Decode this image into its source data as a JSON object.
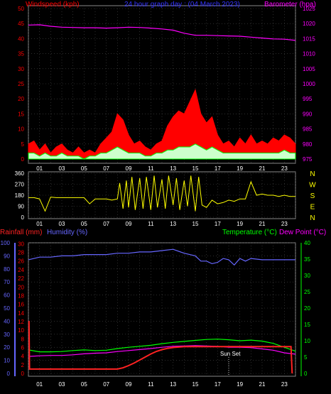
{
  "colors": {
    "background": "#000000",
    "grid": "#4a4a4a",
    "red": "#ff0000",
    "blue": "#3333ff",
    "magenta": "#ff00ff",
    "lime": "#00ff00",
    "white": "#ffffff",
    "yellow": "#ffff00",
    "paleGreen": "#ccffcc",
    "humidity": "#6666ff",
    "rain": "#ff2222"
  },
  "chart_data": [
    {
      "type": "line",
      "id": "wind-baro",
      "title": "24 hour graph day : (04 March 2023)",
      "left_axis_label": "Windspeed (kph)",
      "right_axis_label": "Barometer (hpa)",
      "x_ticks": [
        "01",
        "03",
        "05",
        "07",
        "09",
        "11",
        "13",
        "15",
        "17",
        "19",
        "21",
        "23"
      ],
      "x_range": [
        0,
        24
      ],
      "left_ticks": [
        0,
        5,
        10,
        15,
        20,
        25,
        30,
        35,
        40,
        45,
        50
      ],
      "left_range": [
        0,
        50
      ],
      "right_ticks": [
        975,
        980,
        985,
        990,
        995,
        1000,
        1005,
        1010,
        1015,
        1020,
        1025
      ],
      "right_range": [
        975,
        1025
      ],
      "series": [
        {
          "key": "barometer",
          "axis": "right",
          "x": [
            0,
            1,
            2,
            3,
            4,
            5,
            6,
            7,
            8,
            9,
            10,
            11,
            12,
            13,
            14,
            15,
            16,
            17,
            18,
            19,
            20,
            21,
            22,
            23,
            24
          ],
          "values": [
            1019.5,
            1019.6,
            1019.1,
            1018.8,
            1018.7,
            1018.6,
            1018.6,
            1018.5,
            1018.6,
            1018.8,
            1018.7,
            1018.5,
            1018.2,
            1017.8,
            1016.8,
            1016.1,
            1016.1,
            1016.0,
            1015.9,
            1015.8,
            1015.5,
            1015.2,
            1014.9,
            1014.8,
            1014.4
          ]
        },
        {
          "key": "gust",
          "axis": "left",
          "x": [
            0,
            0.5,
            1,
            1.5,
            2,
            2.5,
            3,
            3.5,
            4,
            4.5,
            5,
            5.5,
            6,
            6.5,
            7,
            7.5,
            8,
            8.5,
            9,
            9.5,
            10,
            10.5,
            11,
            11.5,
            12,
            12.5,
            13,
            13.5,
            14,
            14.5,
            15,
            15.5,
            16,
            16.5,
            17,
            17.5,
            18,
            18.5,
            19,
            19.5,
            20,
            20.5,
            21,
            21.5,
            22,
            22.5,
            23,
            23.5,
            24
          ],
          "values": [
            5,
            6,
            3,
            5,
            2,
            4,
            5,
            3,
            2,
            4,
            2,
            3,
            2,
            5,
            7,
            9,
            15,
            13,
            8,
            5,
            6,
            4,
            3,
            5,
            6,
            11,
            14,
            16,
            15,
            19,
            23,
            15,
            12,
            14,
            8,
            5,
            6,
            4,
            7,
            5,
            8,
            5,
            6,
            5,
            7,
            6,
            8,
            7,
            5
          ]
        },
        {
          "key": "windspeed",
          "axis": "left",
          "x": [
            0,
            0.5,
            1,
            1.5,
            2,
            2.5,
            3,
            3.5,
            4,
            4.5,
            5,
            5.5,
            6,
            6.5,
            7,
            7.5,
            8,
            8.5,
            9,
            9.5,
            10,
            10.5,
            11,
            11.5,
            12,
            12.5,
            13,
            13.5,
            14,
            14.5,
            15,
            15.5,
            16,
            16.5,
            17,
            17.5,
            18,
            18.5,
            19,
            19.5,
            20,
            20.5,
            21,
            21.5,
            22,
            22.5,
            23,
            23.5,
            24
          ],
          "values": [
            2,
            2,
            1,
            2,
            1,
            1,
            2,
            1,
            1,
            1,
            0,
            1,
            1,
            2,
            2,
            3,
            4,
            3,
            2,
            2,
            2,
            1,
            1,
            2,
            2,
            3,
            3,
            4,
            4,
            4,
            5,
            4,
            3,
            4,
            3,
            2,
            2,
            2,
            2,
            2,
            2,
            2,
            2,
            2,
            2,
            2,
            3,
            2,
            2
          ]
        }
      ]
    },
    {
      "type": "line",
      "id": "direction",
      "x_ticks": [
        "01",
        "03",
        "05",
        "07",
        "09",
        "11",
        "13",
        "15",
        "17",
        "19",
        "21",
        "23"
      ],
      "left_ticks": [
        0,
        90,
        180,
        270,
        360
      ],
      "left_range": [
        0,
        360
      ],
      "compass": [
        "N",
        "W",
        "S",
        "E",
        "N"
      ],
      "series": [
        {
          "key": "direction",
          "x": [
            0,
            0.5,
            1,
            1.5,
            2,
            2.5,
            3,
            3.5,
            4,
            4.5,
            5,
            5.5,
            6,
            6.5,
            7,
            7.5,
            8,
            8.2,
            8.5,
            8.8,
            9,
            9.3,
            9.6,
            10,
            10.3,
            10.6,
            11,
            11.3,
            11.6,
            12,
            12.3,
            12.6,
            13,
            13.3,
            13.6,
            14,
            14.3,
            14.6,
            15,
            15.3,
            15.6,
            16,
            16.5,
            17,
            17.5,
            18,
            18.5,
            19,
            19.5,
            20,
            20.5,
            21,
            21.5,
            22,
            22.5,
            23,
            23.5,
            24
          ],
          "values": [
            160,
            160,
            150,
            50,
            165,
            160,
            160,
            160,
            160,
            160,
            160,
            110,
            150,
            150,
            150,
            140,
            150,
            280,
            70,
            300,
            80,
            330,
            60,
            320,
            70,
            330,
            60,
            340,
            80,
            310,
            70,
            340,
            100,
            320,
            60,
            300,
            90,
            340,
            50,
            330,
            100,
            80,
            140,
            110,
            120,
            140,
            130,
            150,
            150,
            290,
            180,
            190,
            180,
            180,
            170,
            180,
            170,
            170
          ]
        }
      ]
    },
    {
      "type": "line",
      "id": "temp-hum-rain",
      "rain_label": "Rainfall (mm)",
      "humidity_label": "Humidity (%)",
      "temperature_label": "Temperature (°C)",
      "dewpoint_label": "Dew Point (°C)",
      "annotation": "Sun Set",
      "x_ticks": [
        "01",
        "03",
        "05",
        "07",
        "09",
        "11",
        "13",
        "15",
        "17",
        "19",
        "21",
        "23"
      ],
      "humidity_ticks": [
        0,
        10,
        20,
        30,
        40,
        50,
        60,
        70,
        80,
        90,
        100
      ],
      "rain_ticks": [
        0,
        2,
        4,
        6,
        8,
        10,
        12,
        14,
        16,
        18,
        20,
        22,
        24,
        26,
        28,
        30
      ],
      "temp_ticks": [
        0,
        5,
        10,
        15,
        20,
        25,
        30,
        35,
        40
      ],
      "humidity_range": [
        0,
        100
      ],
      "temp_range": [
        0,
        40
      ],
      "series": [
        {
          "key": "humidity",
          "x": [
            0,
            1,
            2,
            3,
            4,
            5,
            6,
            7,
            8,
            9,
            10,
            11,
            12,
            13,
            14,
            15,
            15.5,
            16,
            16.5,
            17,
            17.5,
            18,
            18.5,
            19,
            19.5,
            20,
            21,
            22,
            23,
            24
          ],
          "values": [
            87,
            89,
            89,
            90,
            90,
            91,
            91,
            91,
            92,
            92,
            93,
            93,
            94,
            95,
            92,
            90,
            86,
            86,
            84,
            85,
            88,
            87,
            83,
            88,
            86,
            88,
            87,
            87,
            87,
            87
          ]
        },
        {
          "key": "temperature",
          "x": [
            0,
            1,
            2,
            3,
            4,
            5,
            6,
            7,
            8,
            9,
            10,
            11,
            12,
            13,
            14,
            15,
            16,
            17,
            18,
            19,
            20,
            21,
            22,
            23,
            24
          ],
          "values": [
            7.2,
            6.6,
            6.6,
            6.7,
            7.0,
            7.2,
            7.0,
            7.1,
            7.6,
            8.0,
            8.3,
            8.6,
            9.1,
            9.5,
            9.8,
            10.1,
            10.4,
            10.5,
            10.3,
            10.0,
            10.2,
            9.9,
            9.2,
            8.0,
            6.8
          ]
        },
        {
          "key": "dewpoint",
          "x": [
            0,
            1,
            2,
            3,
            4,
            5,
            6,
            7,
            8,
            9,
            10,
            11,
            12,
            13,
            14,
            15,
            16,
            17,
            18,
            19,
            20,
            21,
            22,
            23,
            24
          ],
          "values": [
            5.2,
            5.4,
            5.5,
            5.5,
            5.7,
            6.0,
            6.2,
            6.3,
            6.7,
            7.0,
            7.3,
            7.6,
            8.0,
            8.3,
            8.4,
            8.5,
            8.4,
            8.3,
            8.0,
            8.0,
            7.9,
            7.5,
            7.1,
            6.3,
            5.9
          ]
        },
        {
          "key": "rainfall",
          "x": [
            0,
            0.05,
            0.1,
            0.2,
            1,
            2,
            3,
            4,
            5,
            6,
            7,
            8,
            8.5,
            9,
            9.5,
            10,
            10.5,
            11,
            11.5,
            12,
            12.5,
            13,
            13.5,
            14,
            15,
            16,
            17,
            18,
            19,
            20,
            21,
            22,
            23,
            23.6,
            23.7
          ],
          "values": [
            12,
            12,
            1,
            1,
            1,
            1,
            1,
            1,
            1,
            1,
            1,
            1,
            1.3,
            1.8,
            2.4,
            3.1,
            3.8,
            4.5,
            5.1,
            5.5,
            5.8,
            6,
            6.1,
            6.2,
            6.2,
            6.2,
            6.2,
            6.2,
            6.2,
            6.2,
            6.2,
            6.2,
            6.2,
            6.2,
            0
          ]
        }
      ]
    }
  ]
}
